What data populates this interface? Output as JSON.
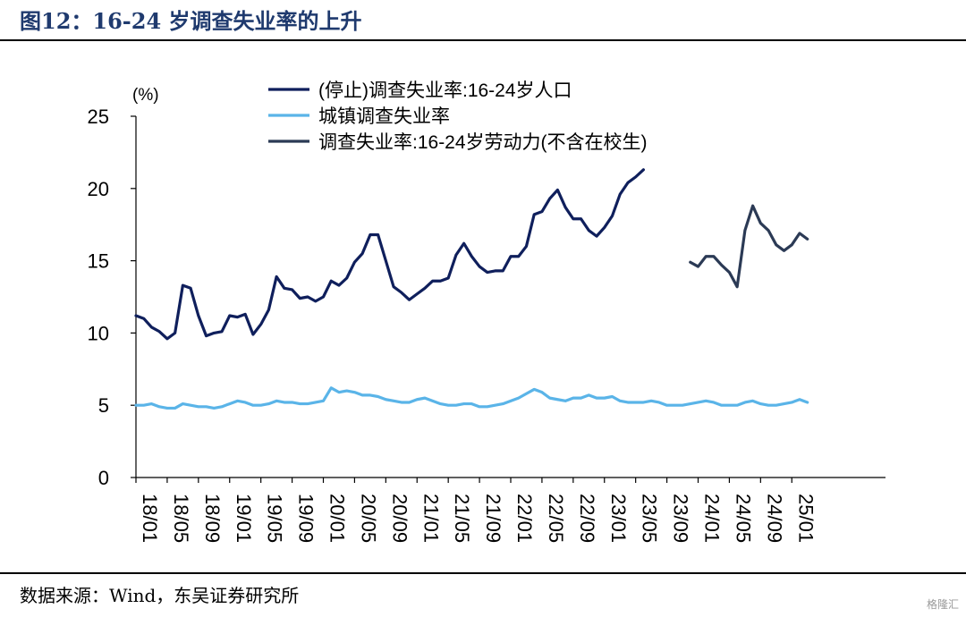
{
  "header": {
    "title": "图12：16-24 岁调查失业率的上升"
  },
  "footer": {
    "source": "数据来源：Wind，东吴证券研究所"
  },
  "watermark": {
    "text": "格隆汇"
  },
  "chart_data": {
    "type": "line",
    "ylabel": "(%)",
    "ylim": [
      0,
      25
    ],
    "yticks": [
      0,
      5,
      10,
      15,
      20,
      25
    ],
    "xticks": [
      "18/01",
      "18/05",
      "18/09",
      "19/01",
      "19/05",
      "19/09",
      "20/01",
      "20/05",
      "20/09",
      "21/01",
      "21/05",
      "21/09",
      "22/01",
      "22/05",
      "22/09",
      "23/01",
      "23/05",
      "23/09",
      "24/01",
      "24/05",
      "24/09",
      "25/01"
    ],
    "start_month": "2018-01",
    "legend_position": "top-center",
    "series": [
      {
        "name": "(停止)调查失业率:16-24岁人口",
        "color": "#0f1f5c",
        "start_index": 0,
        "values": [
          11.2,
          11.0,
          10.4,
          10.1,
          9.6,
          10.0,
          13.3,
          13.1,
          11.2,
          9.8,
          10.0,
          10.1,
          11.2,
          11.1,
          11.3,
          9.9,
          10.6,
          11.6,
          13.9,
          13.1,
          13.0,
          12.4,
          12.5,
          12.2,
          12.5,
          13.6,
          13.3,
          13.8,
          14.9,
          15.5,
          16.8,
          16.8,
          15.0,
          13.2,
          12.8,
          12.3,
          12.7,
          13.1,
          13.6,
          13.6,
          13.8,
          15.4,
          16.2,
          15.3,
          14.6,
          14.2,
          14.3,
          14.3,
          15.3,
          15.3,
          16.0,
          18.2,
          18.4,
          19.3,
          19.9,
          18.7,
          17.9,
          17.9,
          17.1,
          16.7,
          17.3,
          18.1,
          19.6,
          20.4,
          20.8,
          21.3
        ]
      },
      {
        "name": "城镇调查失业率",
        "color": "#5ab4e8",
        "start_index": 0,
        "values": [
          5.0,
          5.0,
          5.1,
          4.9,
          4.8,
          4.8,
          5.1,
          5.0,
          4.9,
          4.9,
          4.8,
          4.9,
          5.1,
          5.3,
          5.2,
          5.0,
          5.0,
          5.1,
          5.3,
          5.2,
          5.2,
          5.1,
          5.1,
          5.2,
          5.3,
          6.2,
          5.9,
          6.0,
          5.9,
          5.7,
          5.7,
          5.6,
          5.4,
          5.3,
          5.2,
          5.2,
          5.4,
          5.5,
          5.3,
          5.1,
          5.0,
          5.0,
          5.1,
          5.1,
          4.9,
          4.9,
          5.0,
          5.1,
          5.3,
          5.5,
          5.8,
          6.1,
          5.9,
          5.5,
          5.4,
          5.3,
          5.5,
          5.5,
          5.7,
          5.5,
          5.5,
          5.6,
          5.3,
          5.2,
          5.2,
          5.2,
          5.3,
          5.2,
          5.0,
          5.0,
          5.0,
          5.1,
          5.2,
          5.3,
          5.2,
          5.0,
          5.0,
          5.0,
          5.2,
          5.3,
          5.1,
          5.0,
          5.0,
          5.1,
          5.2,
          5.4,
          5.2
        ]
      },
      {
        "name": "调查失业率:16-24岁劳动力(不含在校生)",
        "color": "#2b3a55",
        "start_index": 71,
        "values": [
          14.9,
          14.6,
          15.3,
          15.3,
          14.7,
          14.2,
          13.2,
          17.1,
          18.8,
          17.6,
          17.1,
          16.1,
          15.7,
          16.1,
          16.9,
          16.5
        ]
      }
    ]
  }
}
